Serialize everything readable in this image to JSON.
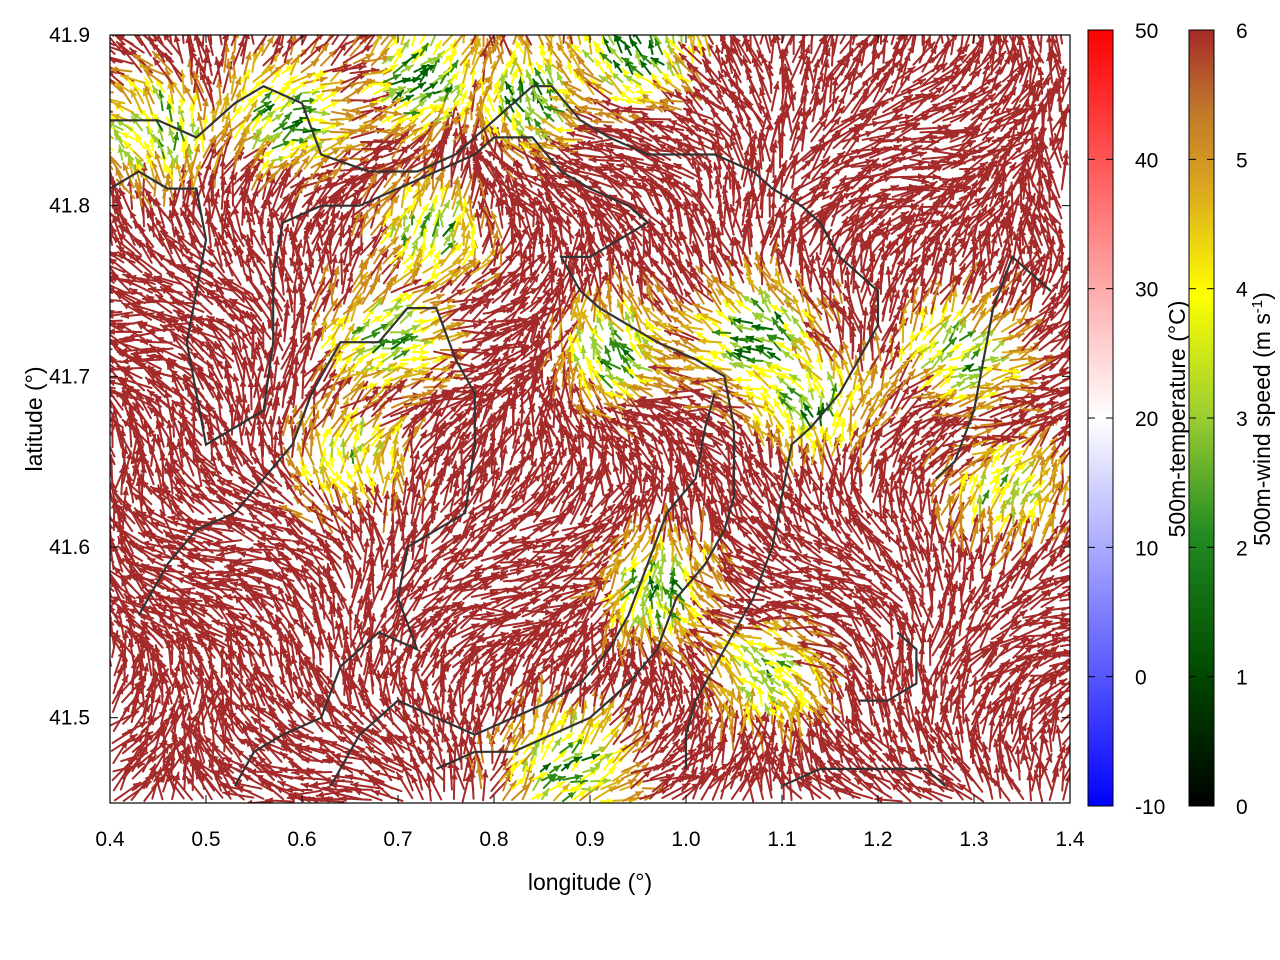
{
  "chart_data": {
    "type": "vector_field",
    "xlabel": "longitude (°)",
    "ylabel": "latitude (°)",
    "xlim": [
      0.4,
      1.4
    ],
    "ylim": [
      41.45,
      41.9
    ],
    "xticks": [
      "0.4",
      "0.5",
      "0.6",
      "0.7",
      "0.8",
      "0.9",
      "1.0",
      "1.1",
      "1.2",
      "1.3",
      "1.4"
    ],
    "yticks": [
      "41.5",
      "41.6",
      "41.7",
      "41.8",
      "41.9"
    ],
    "grid": false,
    "colorbars": [
      {
        "label": "500m-temperature (°C)",
        "range": [
          -10,
          50
        ],
        "ticks": [
          "50",
          "40",
          "30",
          "20",
          "10",
          "0",
          "-10"
        ],
        "colors": [
          "#0000ff",
          "#ffffff",
          "#ff0000"
        ]
      },
      {
        "label": "500m-wind speed (m s",
        "label_sup": "-1",
        "label_end": ")",
        "range": [
          0,
          6
        ],
        "ticks": [
          "6",
          "5",
          "4",
          "3",
          "2",
          "1",
          "0"
        ],
        "colors": [
          "#000000",
          "#006400",
          "#228b22",
          "#9acd32",
          "#ffff00",
          "#daa520",
          "#cd853f",
          "#a52a2a"
        ]
      }
    ],
    "series": [
      {
        "kind": "wind_vectors",
        "speed_classes": [
          {
            "color": "#a52a2a",
            "speed": 6.0
          },
          {
            "color": "#cc8a1a",
            "speed": 5.0
          },
          {
            "color": "#dab010",
            "speed": 4.5
          },
          {
            "color": "#ffff00",
            "speed": 4.0
          },
          {
            "color": "#9acd32",
            "speed": 3.0
          },
          {
            "color": "#2e8b10",
            "speed": 2.5
          },
          {
            "color": "#006400",
            "speed": 2.0
          }
        ],
        "calm_zones": [
          {
            "lon": 0.45,
            "lat": 41.84,
            "level": 0.85
          },
          {
            "lon": 0.58,
            "lat": 41.85,
            "level": 0.9
          },
          {
            "lon": 0.72,
            "lat": 41.87,
            "level": 0.95
          },
          {
            "lon": 0.84,
            "lat": 41.86,
            "level": 0.9
          },
          {
            "lon": 0.95,
            "lat": 41.89,
            "level": 1.0
          },
          {
            "lon": 0.68,
            "lat": 41.72,
            "level": 0.85
          },
          {
            "lon": 0.73,
            "lat": 41.78,
            "level": 0.8
          },
          {
            "lon": 0.93,
            "lat": 41.71,
            "level": 0.85
          },
          {
            "lon": 1.08,
            "lat": 41.72,
            "level": 0.95
          },
          {
            "lon": 1.13,
            "lat": 41.68,
            "level": 0.85
          },
          {
            "lon": 1.28,
            "lat": 41.71,
            "level": 0.8
          },
          {
            "lon": 0.65,
            "lat": 41.65,
            "level": 0.7
          },
          {
            "lon": 0.97,
            "lat": 41.57,
            "level": 0.9
          },
          {
            "lon": 1.09,
            "lat": 41.52,
            "level": 0.8
          },
          {
            "lon": 0.87,
            "lat": 41.47,
            "level": 0.85
          },
          {
            "lon": 1.33,
            "lat": 41.63,
            "level": 0.75
          }
        ]
      },
      {
        "kind": "contour_lines",
        "color": "#333333",
        "lines": [
          [
            [
              0.4,
              41.85
            ],
            [
              0.45,
              41.85
            ],
            [
              0.49,
              41.84
            ],
            [
              0.53,
              41.86
            ],
            [
              0.56,
              41.87
            ],
            [
              0.6,
              41.86
            ],
            [
              0.62,
              41.83
            ],
            [
              0.67,
              41.82
            ],
            [
              0.72,
              41.82
            ],
            [
              0.76,
              41.83
            ],
            [
              0.8,
              41.85
            ],
            [
              0.84,
              41.87
            ],
            [
              0.86,
              41.87
            ],
            [
              0.89,
              41.85
            ],
            [
              0.92,
              41.84
            ],
            [
              0.96,
              41.83
            ],
            [
              1.0,
              41.83
            ],
            [
              1.03,
              41.83
            ],
            [
              1.07,
              41.82
            ],
            [
              1.09,
              41.81
            ],
            [
              1.12,
              41.8
            ],
            [
              1.14,
              41.79
            ],
            [
              1.16,
              41.77
            ],
            [
              1.18,
              41.76
            ],
            [
              1.2,
              41.75
            ],
            [
              1.2,
              41.73
            ],
            [
              1.18,
              41.71
            ],
            [
              1.16,
              41.69
            ],
            [
              1.13,
              41.67
            ],
            [
              1.11,
              41.66
            ],
            [
              1.1,
              41.63
            ],
            [
              1.09,
              41.6
            ],
            [
              1.07,
              41.57
            ],
            [
              1.05,
              41.55
            ],
            [
              1.03,
              41.53
            ],
            [
              1.01,
              41.51
            ],
            [
              1.0,
              41.49
            ],
            [
              1.0,
              41.47
            ]
          ],
          [
            [
              0.4,
              41.81
            ],
            [
              0.43,
              41.82
            ],
            [
              0.46,
              41.81
            ],
            [
              0.49,
              41.81
            ],
            [
              0.5,
              41.78
            ],
            [
              0.49,
              41.75
            ],
            [
              0.48,
              41.72
            ],
            [
              0.49,
              41.69
            ],
            [
              0.5,
              41.66
            ],
            [
              0.53,
              41.67
            ],
            [
              0.56,
              41.68
            ],
            [
              0.57,
              41.72
            ],
            [
              0.57,
              41.76
            ],
            [
              0.58,
              41.79
            ],
            [
              0.62,
              41.8
            ],
            [
              0.66,
              41.8
            ],
            [
              0.7,
              41.81
            ],
            [
              0.74,
              41.82
            ],
            [
              0.78,
              41.83
            ],
            [
              0.8,
              41.84
            ],
            [
              0.84,
              41.84
            ],
            [
              0.87,
              41.82
            ],
            [
              0.9,
              41.81
            ],
            [
              0.94,
              41.8
            ],
            [
              0.96,
              41.79
            ],
            [
              0.93,
              41.78
            ],
            [
              0.9,
              41.77
            ],
            [
              0.87,
              41.77
            ],
            [
              0.89,
              41.75
            ],
            [
              0.91,
              41.74
            ],
            [
              0.94,
              41.73
            ],
            [
              0.97,
              41.72
            ],
            [
              1.01,
              41.71
            ],
            [
              1.04,
              41.7
            ],
            [
              1.05,
              41.67
            ],
            [
              1.05,
              41.63
            ],
            [
              1.04,
              41.61
            ],
            [
              1.02,
              41.59
            ],
            [
              0.99,
              41.57
            ],
            [
              0.97,
              41.54
            ],
            [
              0.94,
              41.52
            ],
            [
              0.9,
              41.5
            ],
            [
              0.86,
              41.49
            ],
            [
              0.82,
              41.48
            ],
            [
              0.78,
              41.48
            ],
            [
              0.74,
              41.47
            ]
          ],
          [
            [
              0.43,
              41.56
            ],
            [
              0.46,
              41.59
            ],
            [
              0.49,
              41.61
            ],
            [
              0.53,
              41.62
            ],
            [
              0.56,
              41.64
            ],
            [
              0.59,
              41.66
            ],
            [
              0.61,
              41.69
            ],
            [
              0.64,
              41.72
            ],
            [
              0.68,
              41.72
            ],
            [
              0.71,
              41.74
            ],
            [
              0.74,
              41.74
            ],
            [
              0.76,
              41.71
            ],
            [
              0.78,
              41.69
            ],
            [
              0.78,
              41.66
            ],
            [
              0.77,
              41.62
            ],
            [
              0.74,
              41.61
            ],
            [
              0.71,
              41.6
            ],
            [
              0.7,
              41.57
            ],
            [
              0.72,
              41.54
            ],
            [
              0.68,
              41.55
            ],
            [
              0.64,
              41.53
            ],
            [
              0.62,
              41.5
            ],
            [
              0.58,
              41.49
            ],
            [
              0.55,
              41.48
            ],
            [
              0.53,
              41.46
            ]
          ],
          [
            [
              0.63,
              41.46
            ],
            [
              0.66,
              41.49
            ],
            [
              0.7,
              41.51
            ],
            [
              0.74,
              41.5
            ],
            [
              0.78,
              41.49
            ],
            [
              0.82,
              41.5
            ],
            [
              0.86,
              41.51
            ],
            [
              0.89,
              41.52
            ],
            [
              0.92,
              41.54
            ],
            [
              0.94,
              41.56
            ],
            [
              0.96,
              41.59
            ],
            [
              0.98,
              41.62
            ],
            [
              1.01,
              41.64
            ],
            [
              1.02,
              41.67
            ],
            [
              1.03,
              41.69
            ]
          ],
          [
            [
              1.1,
              41.46
            ],
            [
              1.14,
              41.47
            ],
            [
              1.18,
              41.47
            ],
            [
              1.22,
              41.47
            ],
            [
              1.25,
              41.47
            ],
            [
              1.27,
              41.46
            ]
          ],
          [
            [
              1.18,
              41.51
            ],
            [
              1.21,
              41.51
            ],
            [
              1.24,
              41.52
            ],
            [
              1.24,
              41.54
            ],
            [
              1.22,
              41.55
            ]
          ],
          [
            [
              1.26,
              41.64
            ],
            [
              1.28,
              41.65
            ],
            [
              1.3,
              41.68
            ],
            [
              1.31,
              41.71
            ],
            [
              1.32,
              41.74
            ],
            [
              1.34,
              41.77
            ],
            [
              1.36,
              41.76
            ],
            [
              1.38,
              41.75
            ]
          ]
        ]
      }
    ]
  }
}
